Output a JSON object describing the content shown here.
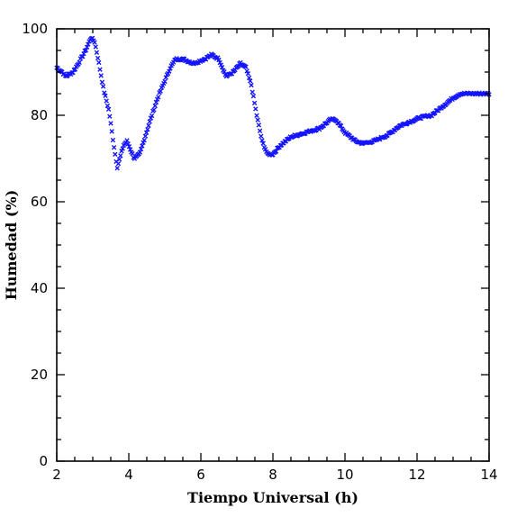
{
  "chart_data": {
    "type": "scatter",
    "title": "",
    "xlabel": "Tiempo Universal (h)",
    "ylabel": "Humedad (%)",
    "xlim": [
      2,
      14
    ],
    "ylim": [
      0,
      100
    ],
    "x_ticks": [
      2,
      4,
      6,
      8,
      10,
      12,
      14
    ],
    "y_ticks": [
      0,
      20,
      40,
      60,
      80,
      100
    ],
    "x_minor_step": 0.5,
    "y_minor_step": 5,
    "grid": false,
    "legend": "none",
    "marker": "x",
    "color": "#1414ff",
    "keypoints": [
      [
        2.0,
        91
      ],
      [
        2.15,
        90
      ],
      [
        2.25,
        89
      ],
      [
        2.45,
        90
      ],
      [
        2.6,
        92
      ],
      [
        2.8,
        95
      ],
      [
        2.95,
        98
      ],
      [
        3.05,
        97
      ],
      [
        3.15,
        93
      ],
      [
        3.3,
        86
      ],
      [
        3.45,
        81
      ],
      [
        3.55,
        75
      ],
      [
        3.62,
        71
      ],
      [
        3.68,
        68
      ],
      [
        3.75,
        70
      ],
      [
        3.85,
        73
      ],
      [
        3.95,
        74
      ],
      [
        4.05,
        72
      ],
      [
        4.15,
        70
      ],
      [
        4.3,
        71
      ],
      [
        4.45,
        75
      ],
      [
        4.6,
        79
      ],
      [
        4.8,
        84
      ],
      [
        5.0,
        88
      ],
      [
        5.15,
        91
      ],
      [
        5.3,
        93
      ],
      [
        5.5,
        93
      ],
      [
        5.8,
        92
      ],
      [
        6.1,
        93
      ],
      [
        6.3,
        94
      ],
      [
        6.5,
        93
      ],
      [
        6.7,
        89
      ],
      [
        6.9,
        90
      ],
      [
        7.1,
        92
      ],
      [
        7.25,
        91
      ],
      [
        7.4,
        87
      ],
      [
        7.55,
        80
      ],
      [
        7.7,
        74
      ],
      [
        7.85,
        71
      ],
      [
        8.0,
        71
      ],
      [
        8.2,
        73
      ],
      [
        8.5,
        75
      ],
      [
        8.9,
        76
      ],
      [
        9.3,
        77
      ],
      [
        9.6,
        79
      ],
      [
        9.75,
        79
      ],
      [
        10.0,
        76
      ],
      [
        10.3,
        74
      ],
      [
        10.5,
        73.5
      ],
      [
        10.8,
        74
      ],
      [
        11.2,
        75.5
      ],
      [
        11.5,
        77.5
      ],
      [
        11.8,
        78.5
      ],
      [
        12.1,
        79.5
      ],
      [
        12.4,
        80
      ],
      [
        12.7,
        82
      ],
      [
        13.0,
        84
      ],
      [
        13.2,
        85
      ],
      [
        13.5,
        85
      ],
      [
        14.0,
        85
      ]
    ],
    "sample_step_hours": 0.03
  }
}
